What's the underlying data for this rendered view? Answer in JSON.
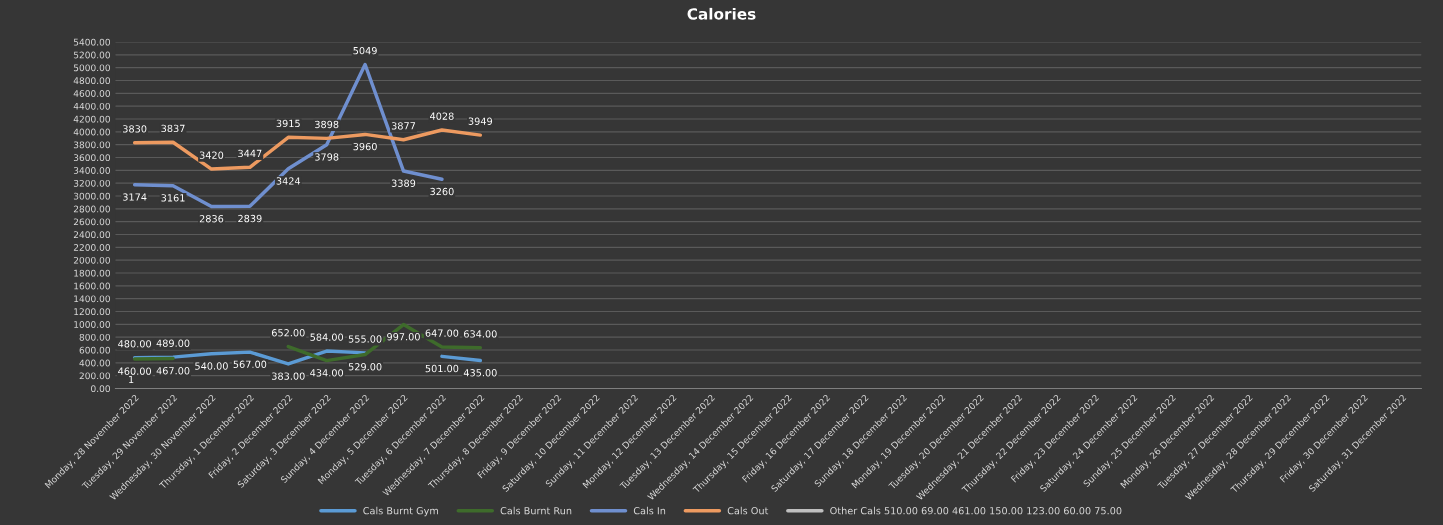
{
  "chart_data": {
    "type": "line",
    "title": "Calories",
    "categories": [
      "Monday, 28 November 2022",
      "Tuesday, 29 November 2022",
      "Wednesday, 30 November 2022",
      "Thursday, 1 December 2022",
      "Friday, 2 December 2022",
      "Saturday, 3 December 2022",
      "Sunday, 4 December 2022",
      "Monday, 5 December 2022",
      "Tuesday, 6 December 2022",
      "Wednesday, 7 December 2022",
      "Thursday, 8 December 2022",
      "Friday, 9 December 2022",
      "Saturday, 10 December 2022",
      "Sunday, 11 December 2022",
      "Monday, 12 December 2022",
      "Tuesday, 13 December 2022",
      "Wednesday, 14 December 2022",
      "Thursday, 15 December 2022",
      "Friday, 16 December 2022",
      "Saturday, 17 December 2022",
      "Sunday, 18 December 2022",
      "Monday, 19 December 2022",
      "Tuesday, 20 December 2022",
      "Wednesday, 21 December 2022",
      "Thursday, 22 December 2022",
      "Friday, 23 December 2022",
      "Saturday, 24 December 2022",
      "Sunday, 25 December 2022",
      "Monday, 26 December 2022",
      "Tuesday, 27 December 2022",
      "Wednesday, 28 December 2022",
      "Thursday, 29 December 2022",
      "Friday, 30 December 2022",
      "Saturday, 31 December 2022"
    ],
    "series": [
      {
        "name": "Cals Burnt Gym",
        "color": "#5b9bd5",
        "values": [
          480,
          489,
          540,
          567,
          383,
          584,
          555,
          null,
          501,
          435,
          null,
          null,
          null,
          null,
          null,
          null,
          null,
          null,
          null,
          null,
          null,
          null,
          null,
          null,
          null,
          null,
          null,
          null,
          null,
          null,
          null,
          null,
          null,
          null
        ],
        "value_labels": [
          "480.00",
          "489.00",
          "540.00",
          "567.00",
          "383.00",
          "584.00",
          "555.00",
          null,
          "501.00",
          "435.00",
          null,
          null,
          null,
          null,
          null,
          null,
          null,
          null,
          null,
          null,
          null,
          null,
          null,
          null,
          null,
          null,
          null,
          null,
          null,
          null,
          null,
          null,
          null,
          null
        ]
      },
      {
        "name": "Cals Burnt Run",
        "color": "#3e6b2b",
        "values": [
          460,
          467,
          null,
          null,
          652,
          434,
          529,
          997,
          647,
          634,
          null,
          null,
          null,
          null,
          null,
          null,
          null,
          null,
          null,
          null,
          null,
          null,
          null,
          null,
          null,
          null,
          null,
          null,
          null,
          null,
          null,
          null,
          null,
          null
        ],
        "value_labels": [
          "460.00",
          "467.00",
          null,
          null,
          "652.00",
          "434.00",
          "529.00",
          "997.00",
          "647.00",
          "634.00",
          null,
          null,
          null,
          null,
          null,
          null,
          null,
          null,
          null,
          null,
          null,
          null,
          null,
          null,
          null,
          null,
          null,
          null,
          null,
          null,
          null,
          null,
          null,
          null
        ]
      },
      {
        "name": "Cals In",
        "color": "#6f8fcf",
        "values": [
          3174,
          3161,
          2836,
          2839,
          3424,
          3798,
          5049,
          3389,
          3260,
          null,
          null,
          null,
          null,
          null,
          null,
          null,
          null,
          null,
          null,
          null,
          null,
          null,
          null,
          null,
          null,
          null,
          null,
          null,
          null,
          null,
          null,
          null,
          null,
          null
        ],
        "value_labels": [
          "3174",
          "3161",
          "2836",
          "2839",
          "3424",
          "3798",
          "5049",
          "3389",
          "3260",
          null,
          null,
          null,
          null,
          null,
          null,
          null,
          null,
          null,
          null,
          null,
          null,
          null,
          null,
          null,
          null,
          null,
          null,
          null,
          null,
          null,
          null,
          null,
          null,
          null
        ]
      },
      {
        "name": "Cals Out",
        "color": "#ed9a60",
        "values": [
          3830,
          3837,
          3420,
          3447,
          3915,
          3898,
          3960,
          3877,
          4028,
          3949,
          null,
          null,
          null,
          null,
          null,
          null,
          null,
          null,
          null,
          null,
          null,
          null,
          null,
          null,
          null,
          null,
          null,
          null,
          null,
          null,
          null,
          null,
          null,
          null
        ],
        "value_labels": [
          "3830",
          "3837",
          "3420",
          "3447",
          "3915",
          "3898",
          "3960",
          "3877",
          "4028",
          "3949",
          null,
          null,
          null,
          null,
          null,
          null,
          null,
          null,
          null,
          null,
          null,
          null,
          null,
          null,
          null,
          null,
          null,
          null,
          null,
          null,
          null,
          null,
          null,
          null
        ]
      },
      {
        "name": "Other Cals 510.00 69.00 461.00 150.00 123.00 60.00 75.00",
        "color": "#bfbfbf",
        "values": [
          null,
          null,
          null,
          null,
          null,
          null,
          null,
          null,
          null,
          null,
          null,
          null,
          null,
          null,
          null,
          null,
          null,
          null,
          null,
          null,
          null,
          null,
          null,
          null,
          null,
          null,
          null,
          null,
          null,
          null,
          null,
          null,
          null,
          null
        ]
      }
    ],
    "ylim": [
      0,
      5400
    ],
    "yticks": [
      {
        "value": 0,
        "label": "0.00"
      },
      {
        "value": 200,
        "label": "200.00"
      },
      {
        "value": 400,
        "label": "400.00"
      },
      {
        "value": 600,
        "label": "600.00"
      },
      {
        "value": 800,
        "label": "800.00"
      },
      {
        "value": 1000,
        "label": "1000.00"
      },
      {
        "value": 1200,
        "label": "1200.00"
      },
      {
        "value": 1400,
        "label": "1400.00"
      },
      {
        "value": 1600,
        "label": "1600.00"
      },
      {
        "value": 1800,
        "label": "1800.00"
      },
      {
        "value": 2000,
        "label": "2000.00"
      },
      {
        "value": 2200,
        "label": "2200.00"
      },
      {
        "value": 2400,
        "label": "2400.00"
      },
      {
        "value": 2600,
        "label": "2600.00"
      },
      {
        "value": 2800,
        "label": "2800.00"
      },
      {
        "value": 3000,
        "label": "3000.00"
      },
      {
        "value": 3200,
        "label": "3200.00"
      },
      {
        "value": 3400,
        "label": "3400.00"
      },
      {
        "value": 3600,
        "label": "3600.00"
      },
      {
        "value": 3800,
        "label": "3800.00"
      },
      {
        "value": 4000,
        "label": "4000.00"
      },
      {
        "value": 4200,
        "label": "4200.00"
      },
      {
        "value": 4400,
        "label": "4400.00"
      },
      {
        "value": 4600,
        "label": "4600.00"
      },
      {
        "value": 4800,
        "label": "4800.00"
      },
      {
        "value": 5000,
        "label": "5000.00"
      },
      {
        "value": 5200,
        "label": "5200.00"
      },
      {
        "value": 5400,
        "label": "5400.00"
      }
    ],
    "annotations": [
      "1"
    ],
    "grid": "y",
    "legend": "bottom",
    "marker": "none",
    "line_style": "solid"
  }
}
